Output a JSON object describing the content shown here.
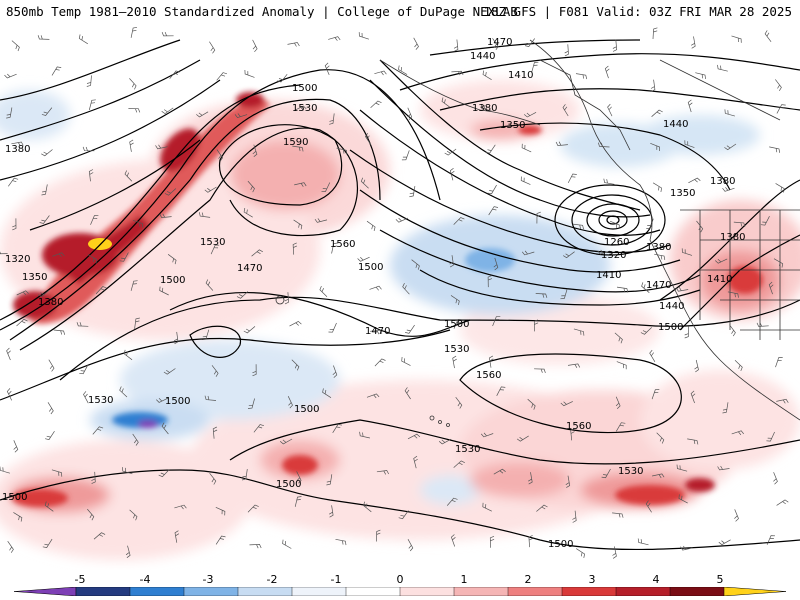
{
  "header": {
    "title_left": "850mb Temp 1981–2010 Standardized Anomaly | College of DuPage NEXLAB",
    "title_right": "18Z GFS | F081 Valid: 03Z FRI MAR 28 2025"
  },
  "colorbar": {
    "tick_labels": [
      "-5",
      "-4",
      "-3",
      "-2",
      "-1",
      "0",
      "1",
      "2",
      "3",
      "4",
      "5"
    ],
    "colors": [
      "#7d3fb5",
      "#243b80",
      "#2f7fd1",
      "#7fb3e6",
      "#c7dcf2",
      "#eef3fa",
      "#ffffff",
      "#fce0e0",
      "#f5b5b5",
      "#ee8080",
      "#d93a3a",
      "#b51f2a",
      "#7a0d15",
      "#ffd21a"
    ]
  },
  "contour_labels": [
    "1470",
    "1440",
    "1410",
    "1380",
    "1350",
    "1500",
    "1530",
    "1590",
    "1560",
    "1380",
    "1320",
    "1350",
    "1380",
    "1500",
    "1470",
    "1530",
    "1500",
    "1470",
    "1500",
    "1530",
    "1500",
    "1530",
    "1560",
    "1560",
    "1530",
    "1530",
    "1500",
    "1500",
    "1500",
    "1500",
    "1440",
    "1350",
    "1380",
    "1260",
    "1320",
    "1410",
    "1380",
    "1470",
    "1500",
    "1440",
    "1410",
    "1380"
  ]
}
